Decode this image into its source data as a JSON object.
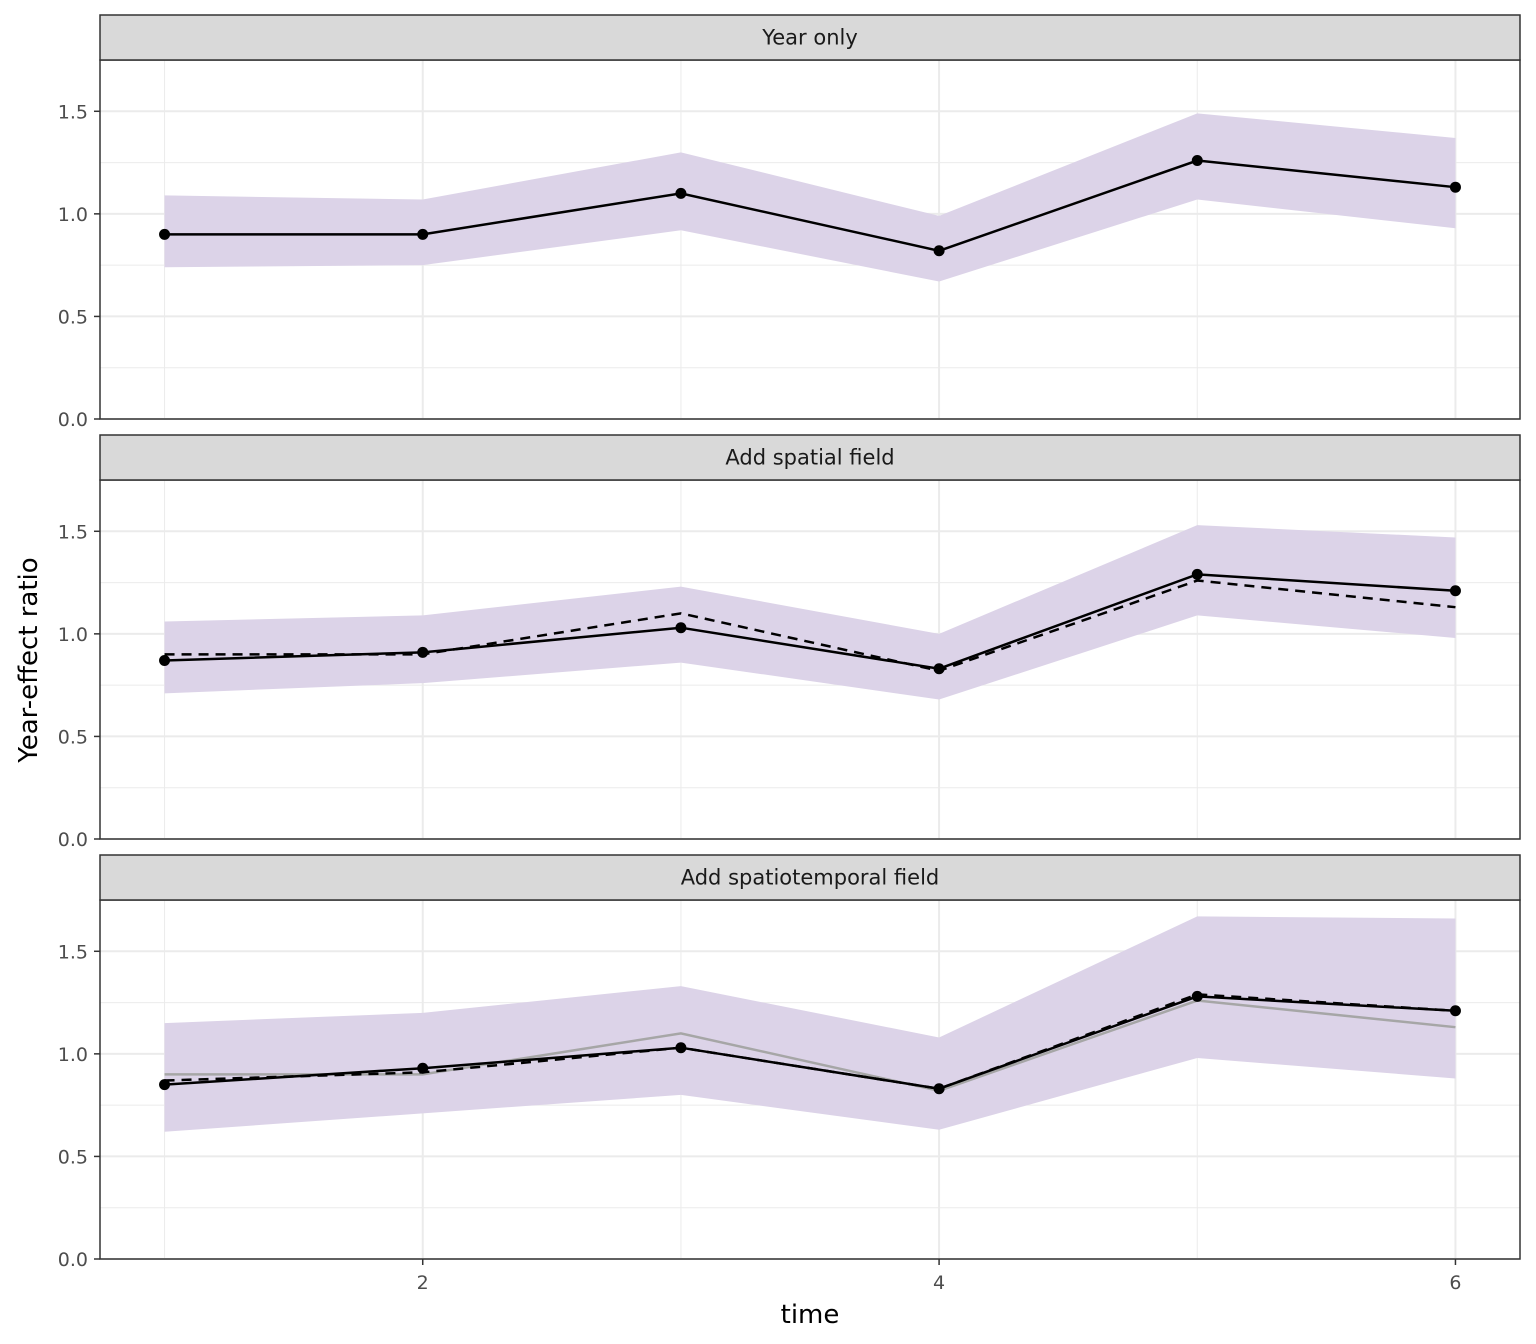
{
  "chart_data": {
    "type": "line",
    "xlabel": "time",
    "ylabel": "Year-effect ratio",
    "xlim": [
      0.75,
      6.25
    ],
    "ylim": [
      0,
      1.75
    ],
    "x_ticks": [
      2,
      4,
      6
    ],
    "y_ticks": [
      0.0,
      0.5,
      1.0,
      1.5
    ],
    "y_tick_labels": [
      "0.0",
      "0.5",
      "1.0",
      "1.5"
    ],
    "x_tick_labels": [
      "2",
      "4",
      "6"
    ],
    "grid": true,
    "x": [
      1,
      2,
      3,
      4,
      5,
      6
    ],
    "colors": {
      "ribbon": "#dcd3e8",
      "estimate": "#000000",
      "previous_dashed": "#000000",
      "reference_grey": "#a6a6a6",
      "strip_bg": "#d9d9d9",
      "grid": "#ebebeb"
    },
    "panels": [
      {
        "label": "Year only",
        "estimate": [
          0.9,
          0.9,
          1.1,
          0.82,
          1.26,
          1.13
        ],
        "lower": [
          0.74,
          0.75,
          0.92,
          0.67,
          1.07,
          0.93
        ],
        "upper": [
          1.09,
          1.07,
          1.3,
          0.99,
          1.49,
          1.37
        ]
      },
      {
        "label": "Add spatial field",
        "estimate": [
          0.87,
          0.91,
          1.03,
          0.83,
          1.29,
          1.21
        ],
        "lower": [
          0.71,
          0.76,
          0.86,
          0.68,
          1.09,
          0.98
        ],
        "upper": [
          1.06,
          1.09,
          1.23,
          1.0,
          1.53,
          1.47
        ],
        "dashed": [
          0.9,
          0.9,
          1.1,
          0.82,
          1.26,
          1.13
        ]
      },
      {
        "label": "Add spatiotemporal field",
        "estimate": [
          0.85,
          0.93,
          1.03,
          0.83,
          1.28,
          1.21
        ],
        "lower": [
          0.62,
          0.71,
          0.8,
          0.63,
          0.98,
          0.88
        ],
        "upper": [
          1.15,
          1.2,
          1.33,
          1.08,
          1.67,
          1.66
        ],
        "dashed": [
          0.87,
          0.91,
          1.03,
          0.83,
          1.29,
          1.21
        ],
        "grey": [
          0.9,
          0.9,
          1.1,
          0.82,
          1.26,
          1.13
        ]
      }
    ]
  }
}
